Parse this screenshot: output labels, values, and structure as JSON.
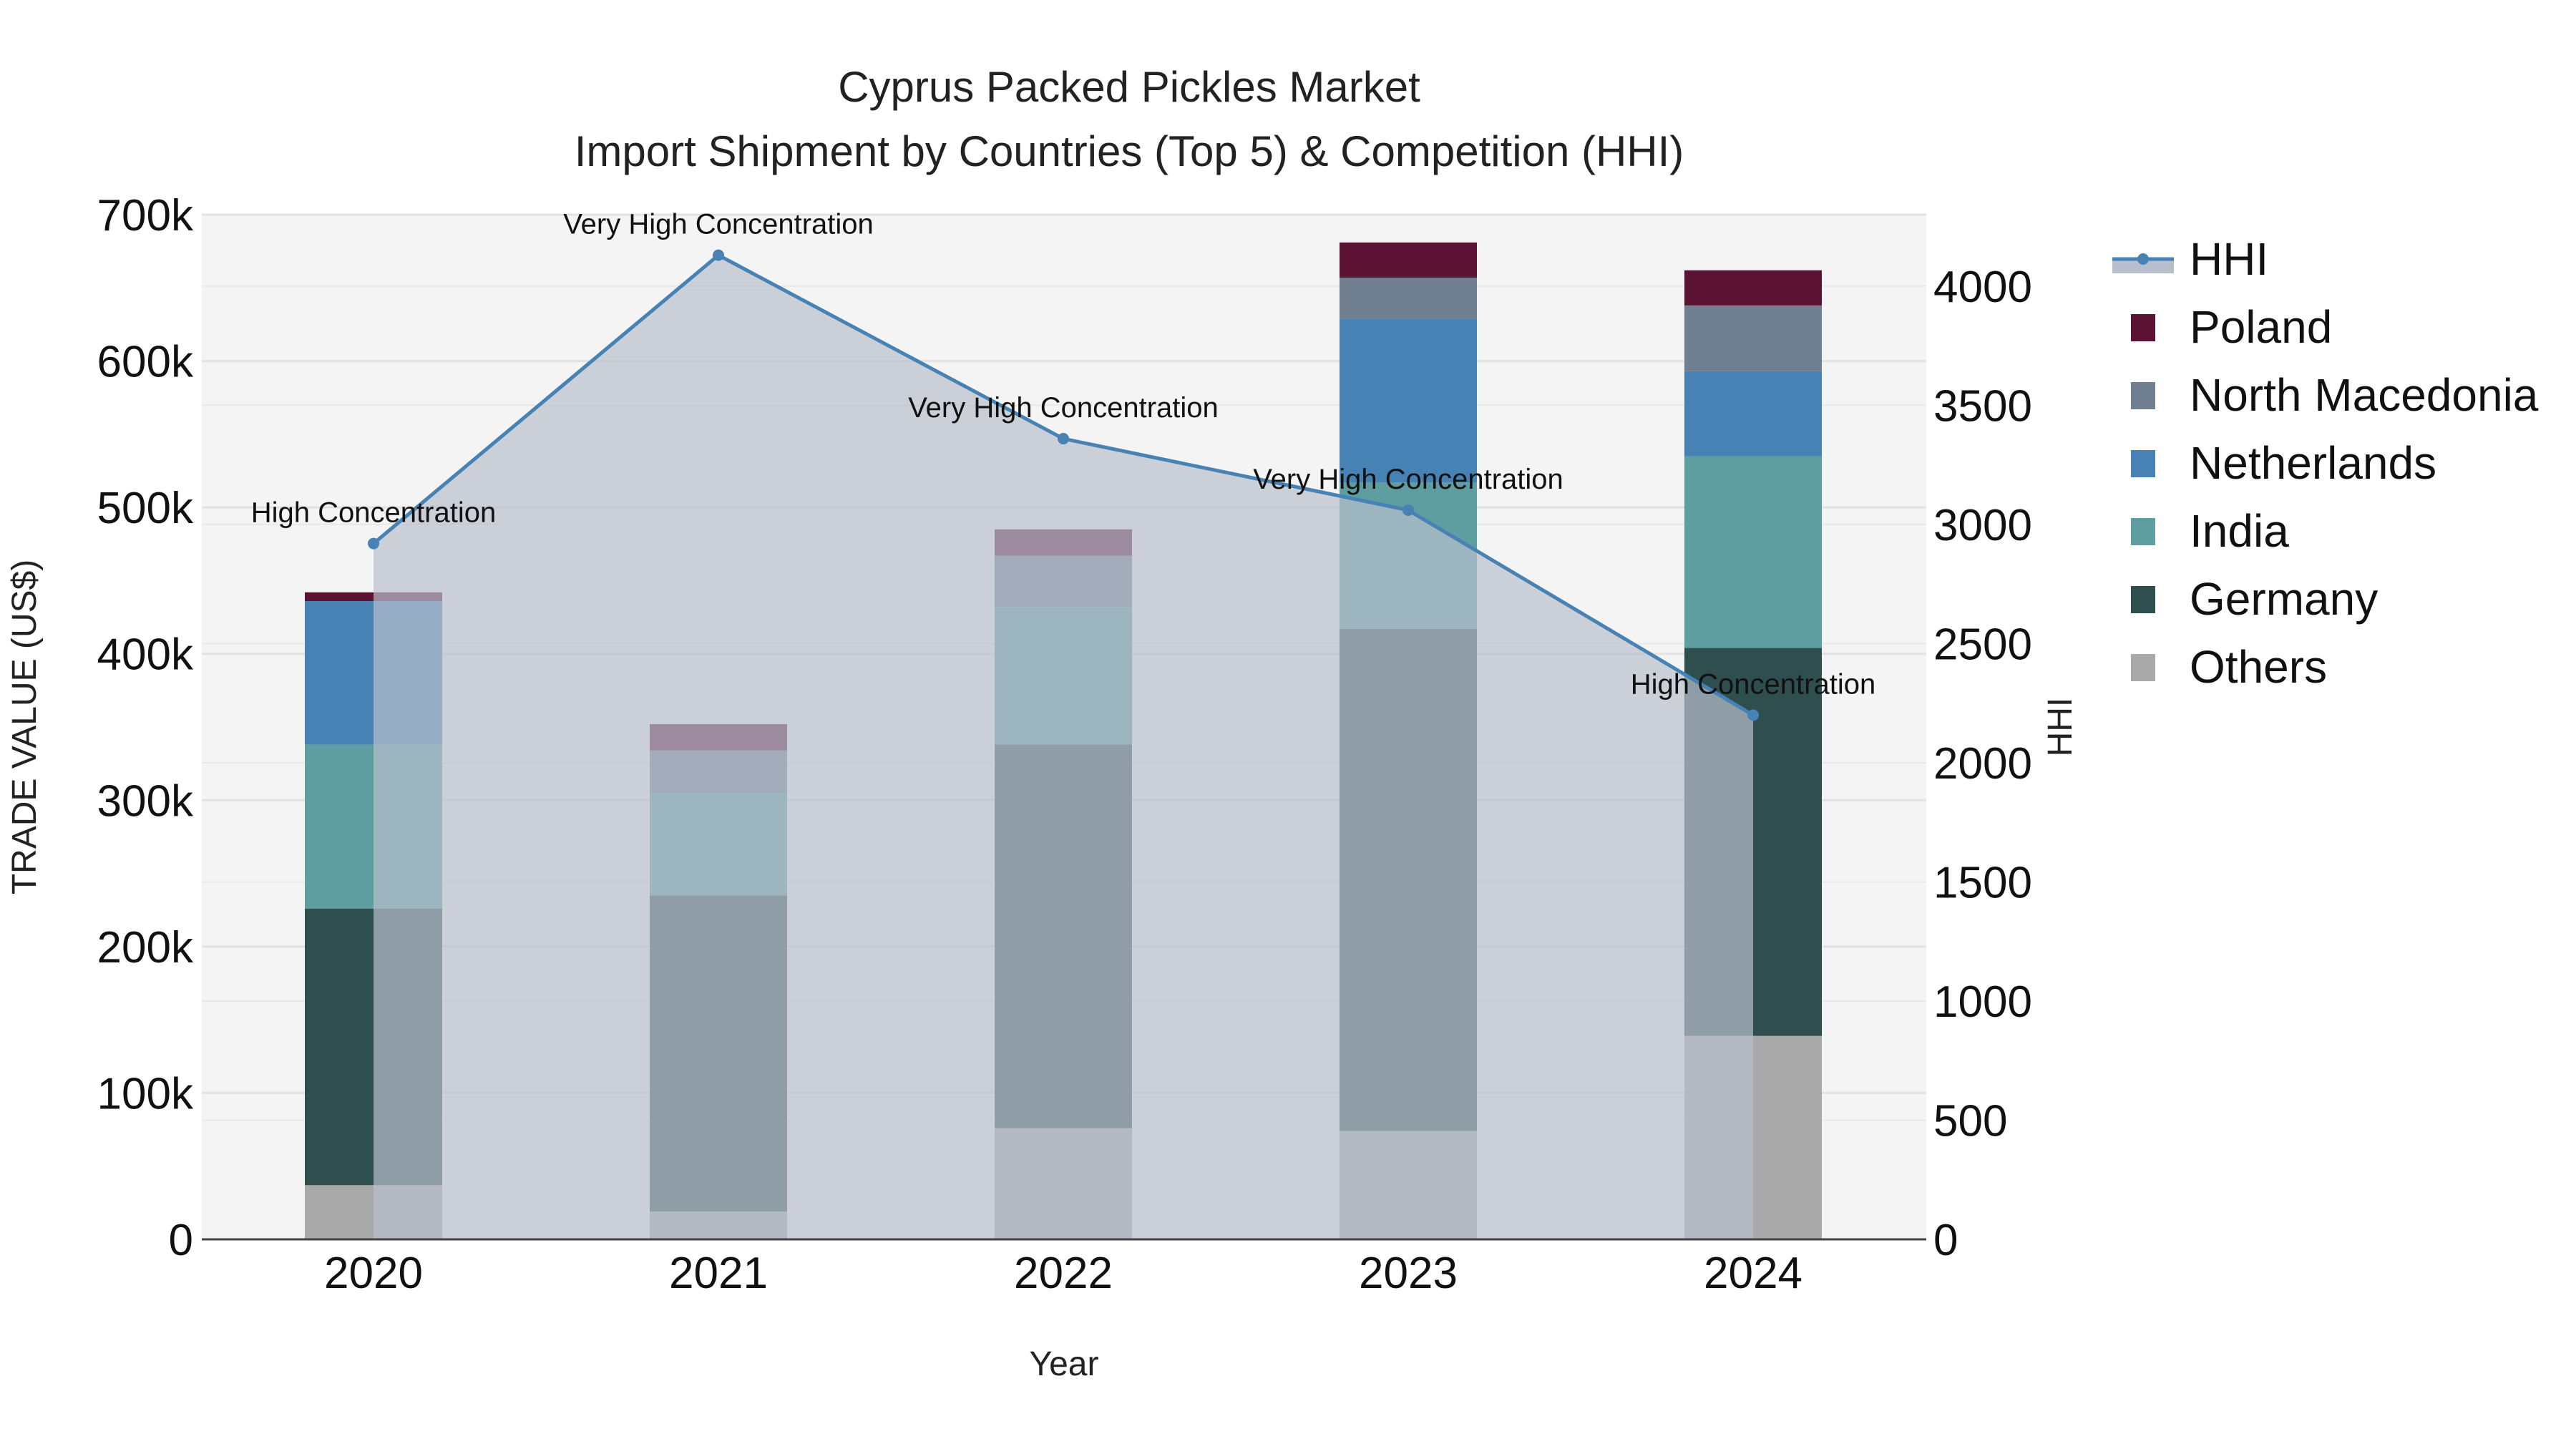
{
  "chart_data": {
    "type": "bar",
    "stacked": true,
    "title": "Cyprus Packed Pickles Market",
    "subtitle": "Import Shipment by Countries (Top 5) & Competition (HHI)",
    "xlabel": "Year",
    "ylabel": "TRADE VALUE (US$)",
    "y2label": "HHI",
    "categories": [
      "2020",
      "2021",
      "2022",
      "2023",
      "2024"
    ],
    "ylim": [
      0,
      700000
    ],
    "y2lim": [
      0,
      4300
    ],
    "yticks": [
      0,
      100000,
      200000,
      300000,
      400000,
      500000,
      600000,
      700000
    ],
    "ytick_labels": [
      "0",
      "100k",
      "200k",
      "300k",
      "400k",
      "500k",
      "600k",
      "700k"
    ],
    "y2ticks": [
      0,
      500,
      1000,
      1500,
      2000,
      2500,
      3000,
      3500,
      4000
    ],
    "y2tick_labels": [
      "0",
      "500",
      "1000",
      "1500",
      "2000",
      "2500",
      "3000",
      "3500",
      "4000"
    ],
    "series": [
      {
        "name": "Others",
        "color": "#a9a9a9",
        "values": [
          37000,
          19000,
          76000,
          74000,
          139000
        ]
      },
      {
        "name": "Germany",
        "color": "#2f4f4f",
        "values": [
          189000,
          216000,
          262000,
          343000,
          265000
        ]
      },
      {
        "name": "India",
        "color": "#5f9ea0",
        "values": [
          112000,
          70000,
          94000,
          100000,
          131000
        ]
      },
      {
        "name": "Netherlands",
        "color": "#4682b4",
        "values": [
          98000,
          0,
          0,
          112000,
          58000
        ]
      },
      {
        "name": "North Macedonia",
        "color": "#708090",
        "values": [
          0,
          29000,
          35000,
          28000,
          45000
        ]
      },
      {
        "name": "Poland",
        "color": "#5c1233",
        "values": [
          6000,
          18000,
          18000,
          24000,
          24000
        ]
      }
    ],
    "hhi": {
      "name": "HHI",
      "color": "#4682b4",
      "values": [
        2920,
        4130,
        3360,
        3060,
        2200
      ],
      "labels": [
        "High Concentration",
        "Very High Concentration",
        "Very High Concentration",
        "Very High Concentration",
        "High Concentration"
      ]
    },
    "legend_order": [
      "HHI",
      "Poland",
      "North Macedonia",
      "Netherlands",
      "India",
      "Germany",
      "Others"
    ],
    "legend_position": "right"
  }
}
